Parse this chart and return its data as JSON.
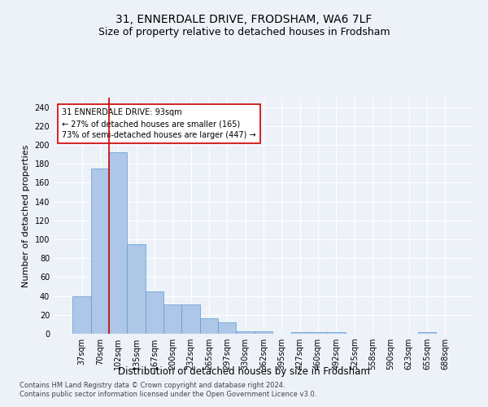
{
  "title": "31, ENNERDALE DRIVE, FRODSHAM, WA6 7LF",
  "subtitle": "Size of property relative to detached houses in Frodsham",
  "xlabel": "Distribution of detached houses by size in Frodsham",
  "ylabel": "Number of detached properties",
  "categories": [
    "37sqm",
    "70sqm",
    "102sqm",
    "135sqm",
    "167sqm",
    "200sqm",
    "232sqm",
    "265sqm",
    "297sqm",
    "330sqm",
    "362sqm",
    "395sqm",
    "427sqm",
    "460sqm",
    "492sqm",
    "525sqm",
    "558sqm",
    "590sqm",
    "623sqm",
    "655sqm",
    "688sqm"
  ],
  "values": [
    40,
    175,
    192,
    95,
    45,
    31,
    31,
    16,
    12,
    3,
    3,
    0,
    2,
    2,
    2,
    0,
    0,
    0,
    0,
    2,
    0
  ],
  "bar_color": "#aec6e8",
  "bar_edge_color": "#5b9bd5",
  "vline_x": 1.5,
  "vline_color": "#cc0000",
  "annotation_text": "31 ENNERDALE DRIVE: 93sqm\n← 27% of detached houses are smaller (165)\n73% of semi-detached houses are larger (447) →",
  "annotation_box_color": "#ffffff",
  "annotation_box_edge": "#cc0000",
  "ylim": [
    0,
    250
  ],
  "yticks": [
    0,
    20,
    40,
    60,
    80,
    100,
    120,
    140,
    160,
    180,
    200,
    220,
    240
  ],
  "footer1": "Contains HM Land Registry data © Crown copyright and database right 2024.",
  "footer2": "Contains public sector information licensed under the Open Government Licence v3.0.",
  "bg_color": "#edf2f9",
  "grid_color": "#ffffff",
  "title_fontsize": 10,
  "subtitle_fontsize": 9,
  "tick_fontsize": 7,
  "ylabel_fontsize": 8,
  "xlabel_fontsize": 8.5,
  "footer_fontsize": 6
}
